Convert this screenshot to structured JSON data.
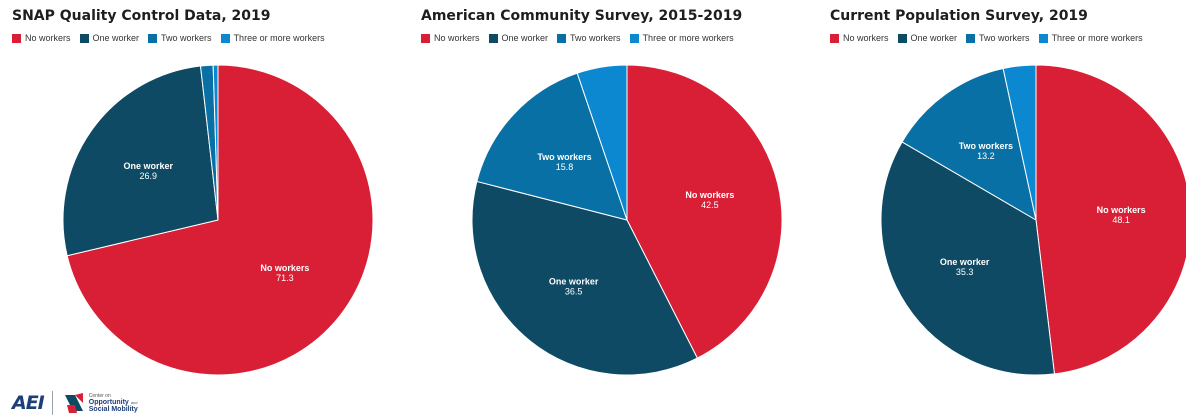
{
  "colors": {
    "no_workers": "#d91f36",
    "one_worker": "#0e4a63",
    "two_workers": "#0870a5",
    "three_plus": "#0b88cf"
  },
  "legend": [
    "No workers",
    "One worker",
    "Two workers",
    "Three or more workers"
  ],
  "chart_data": [
    {
      "type": "pie",
      "title": "SNAP Quality Control Data, 2019",
      "slices": [
        {
          "name": "No workers",
          "value": 71.3,
          "label": "No workers",
          "value_label": "71.3"
        },
        {
          "name": "One worker",
          "value": 26.9,
          "label": "One worker",
          "value_label": "26.9"
        },
        {
          "name": "Two workers",
          "value": 1.3
        },
        {
          "name": "Three or more workers",
          "value": 0.5
        }
      ]
    },
    {
      "type": "pie",
      "title": "American Community Survey, 2015-2019",
      "slices": [
        {
          "name": "No workers",
          "value": 42.5,
          "label": "No workers",
          "value_label": "42.5"
        },
        {
          "name": "One worker",
          "value": 36.5,
          "label": "One worker",
          "value_label": "36.5"
        },
        {
          "name": "Two workers",
          "value": 15.8,
          "label": "Two workers",
          "value_label": "15.8"
        },
        {
          "name": "Three or more workers",
          "value": 5.2
        }
      ]
    },
    {
      "type": "pie",
      "title": "Current Population Survey, 2019",
      "slices": [
        {
          "name": "No workers",
          "value": 48.1,
          "label": "No workers",
          "value_label": "48.1"
        },
        {
          "name": "One worker",
          "value": 35.3,
          "label": "One worker",
          "value_label": "35.3"
        },
        {
          "name": "Two workers",
          "value": 13.2,
          "label": "Two workers",
          "value_label": "13.2"
        },
        {
          "name": "Three or more workers",
          "value": 3.4
        }
      ]
    }
  ],
  "footer": {
    "aei_logo_text": "AEI",
    "cosm_small": "Center on",
    "cosm_line1": "Opportunity",
    "cosm_and": "and",
    "cosm_line2": "Social Mobility"
  }
}
